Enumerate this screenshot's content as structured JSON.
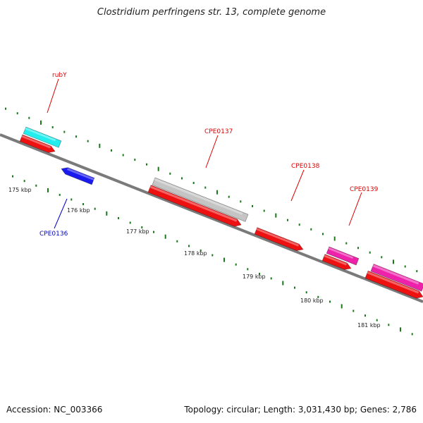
{
  "title": "Clostridium perfringens str. 13, complete genome",
  "footer": {
    "accession": "Accession: NC_003366",
    "summary": "Topology: circular; Length: 3,031,430 bp; Genes: 2,786"
  },
  "colors": {
    "backbone": "#7a7a7a",
    "tick": "#1a7a1a",
    "cds_forward": "#ee1111",
    "gene_cyan": "#22eeee",
    "gene_gray": "#c4c4c4",
    "gene_blue": "#1a1aee",
    "gene_magenta": "#ee22aa",
    "label_red": "#dd0000",
    "label_blue": "#0000cc"
  },
  "scale_labels": [
    "175 kbp",
    "176 kbp",
    "177 kbp",
    "178 kbp",
    "179 kbp",
    "180 kbp",
    "181 kbp"
  ],
  "genes": [
    {
      "label": "rubY",
      "color_key": "label_red"
    },
    {
      "label": "CPE0137",
      "color_key": "label_red"
    },
    {
      "label": "CPE0138",
      "color_key": "label_red"
    },
    {
      "label": "CPE0139",
      "color_key": "label_red"
    },
    {
      "label": "CPE0136",
      "color_key": "label_blue"
    }
  ]
}
